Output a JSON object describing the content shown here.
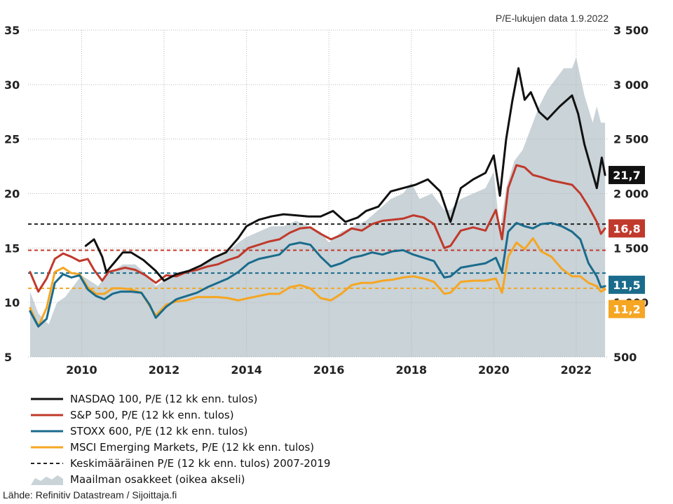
{
  "note": "P/E-lukujen data 1.9.2022",
  "source": "Lähde: Refinitiv Datastream / Sijoittaja.fi",
  "chart_data": {
    "type": "line",
    "x_ticks": [
      "2010",
      "2012",
      "2014",
      "2016",
      "2018",
      "2020",
      "2022"
    ],
    "y_left": {
      "ticks": [
        "35",
        "30",
        "25",
        "20",
        "15",
        "10",
        "5"
      ],
      "lim": [
        5,
        35
      ]
    },
    "y_right": {
      "ticks": [
        "3 500",
        "3 000",
        "2 500",
        "2 000",
        "1 500",
        "1 000",
        "500"
      ],
      "lim": [
        500,
        3500
      ]
    },
    "grid": true,
    "series": [
      {
        "name": "NASDAQ 100, P/E (12 kk enn. tulos)",
        "color": "#111111",
        "kind": "line",
        "end_label": "21,7",
        "x": [
          2010.1,
          2010.3,
          2010.5,
          2010.6,
          2010.8,
          2011.0,
          2011.2,
          2011.5,
          2011.8,
          2012.0,
          2012.3,
          2012.6,
          2012.9,
          2013.2,
          2013.5,
          2013.8,
          2014.0,
          2014.3,
          2014.6,
          2014.9,
          2015.2,
          2015.5,
          2015.8,
          2016.1,
          2016.4,
          2016.7,
          2016.9,
          2017.2,
          2017.5,
          2017.8,
          2018.1,
          2018.4,
          2018.7,
          2018.95,
          2019.2,
          2019.5,
          2019.8,
          2020.0,
          2020.15,
          2020.3,
          2020.45,
          2020.6,
          2020.75,
          2020.9,
          2021.1,
          2021.3,
          2021.6,
          2021.9,
          2022.05,
          2022.2,
          2022.35,
          2022.5,
          2022.62,
          2022.7
        ],
        "y": [
          15.2,
          15.8,
          14.2,
          12.8,
          13.7,
          14.6,
          14.6,
          13.9,
          12.9,
          12.0,
          12.6,
          12.9,
          13.4,
          14.1,
          14.6,
          15.9,
          17.0,
          17.6,
          17.9,
          18.1,
          18.0,
          17.9,
          17.9,
          18.4,
          17.4,
          17.8,
          18.4,
          18.8,
          20.2,
          20.5,
          20.8,
          21.3,
          20.2,
          17.4,
          20.5,
          21.3,
          21.9,
          23.5,
          19.8,
          25.0,
          28.5,
          31.5,
          28.6,
          29.3,
          27.5,
          26.8,
          28.0,
          29.0,
          27.3,
          24.5,
          22.5,
          20.5,
          23.3,
          21.7
        ]
      },
      {
        "name": "S&P 500, P/E (12 kk enn. tulos)",
        "color": "#c0392b",
        "kind": "line",
        "end_label": "16,8",
        "x": [
          2008.75,
          2008.95,
          2009.15,
          2009.35,
          2009.55,
          2009.75,
          2009.95,
          2010.15,
          2010.3,
          2010.5,
          2010.65,
          2010.85,
          2011.05,
          2011.3,
          2011.55,
          2011.8,
          2012.05,
          2012.3,
          2012.55,
          2012.8,
          2013.05,
          2013.3,
          2013.55,
          2013.8,
          2014.05,
          2014.3,
          2014.55,
          2014.8,
          2015.05,
          2015.3,
          2015.55,
          2015.8,
          2016.05,
          2016.3,
          2016.55,
          2016.8,
          2017.05,
          2017.3,
          2017.55,
          2017.8,
          2018.05,
          2018.3,
          2018.55,
          2018.8,
          2018.95,
          2019.2,
          2019.5,
          2019.8,
          2020.05,
          2020.2,
          2020.35,
          2020.55,
          2020.75,
          2020.95,
          2021.15,
          2021.4,
          2021.65,
          2021.9,
          2022.1,
          2022.3,
          2022.5,
          2022.6,
          2022.7
        ],
        "y": [
          12.8,
          11.0,
          12.2,
          14.0,
          14.5,
          14.2,
          13.8,
          14.0,
          13.0,
          12.0,
          12.8,
          13.0,
          13.2,
          13.0,
          12.5,
          11.8,
          12.5,
          12.4,
          12.8,
          13.0,
          13.3,
          13.5,
          13.9,
          14.2,
          15.0,
          15.3,
          15.6,
          15.8,
          16.4,
          16.8,
          16.9,
          16.3,
          15.8,
          16.2,
          16.8,
          16.6,
          17.2,
          17.5,
          17.6,
          17.7,
          18.0,
          17.8,
          17.2,
          15.0,
          15.2,
          16.6,
          16.9,
          16.6,
          18.5,
          15.8,
          20.5,
          22.6,
          22.4,
          21.7,
          21.5,
          21.2,
          21.0,
          20.8,
          20.0,
          18.8,
          17.4,
          16.3,
          16.8
        ]
      },
      {
        "name": "STOXX 600, P/E (12 kk enn. tulos)",
        "color": "#1a6b8c",
        "kind": "line",
        "end_label": "11,5",
        "x": [
          2008.75,
          2008.95,
          2009.15,
          2009.35,
          2009.55,
          2009.75,
          2009.95,
          2010.15,
          2010.35,
          2010.55,
          2010.75,
          2010.95,
          2011.2,
          2011.45,
          2011.65,
          2011.8,
          2012.05,
          2012.3,
          2012.55,
          2012.8,
          2013.05,
          2013.3,
          2013.55,
          2013.8,
          2014.05,
          2014.3,
          2014.55,
          2014.8,
          2015.05,
          2015.3,
          2015.55,
          2015.8,
          2016.05,
          2016.3,
          2016.55,
          2016.8,
          2017.05,
          2017.3,
          2017.55,
          2017.8,
          2018.05,
          2018.3,
          2018.55,
          2018.8,
          2018.95,
          2019.2,
          2019.5,
          2019.8,
          2020.05,
          2020.2,
          2020.35,
          2020.55,
          2020.75,
          2020.95,
          2021.15,
          2021.4,
          2021.65,
          2021.9,
          2022.1,
          2022.3,
          2022.5,
          2022.6,
          2022.7
        ],
        "y": [
          9.2,
          7.8,
          8.5,
          11.8,
          12.6,
          12.3,
          12.5,
          11.2,
          10.6,
          10.3,
          10.8,
          11.0,
          11.0,
          10.9,
          9.8,
          8.6,
          9.6,
          10.3,
          10.6,
          10.9,
          11.4,
          11.8,
          12.2,
          12.8,
          13.6,
          14.0,
          14.2,
          14.4,
          15.3,
          15.5,
          15.3,
          14.2,
          13.3,
          13.6,
          14.1,
          14.3,
          14.6,
          14.4,
          14.7,
          14.8,
          14.4,
          14.1,
          13.8,
          12.3,
          12.4,
          13.2,
          13.4,
          13.6,
          14.1,
          12.8,
          16.5,
          17.3,
          17.0,
          16.8,
          17.2,
          17.3,
          17.0,
          16.5,
          15.8,
          13.6,
          12.4,
          11.4,
          11.5
        ]
      },
      {
        "name": "MSCI Emerging Markets, P/E (12 kk enn. tulos)",
        "color": "#f5a623",
        "kind": "line",
        "end_label": "11,2",
        "x": [
          2008.75,
          2008.95,
          2009.15,
          2009.35,
          2009.55,
          2009.75,
          2009.95,
          2010.15,
          2010.35,
          2010.55,
          2010.75,
          2010.95,
          2011.2,
          2011.45,
          2011.65,
          2011.8,
          2012.05,
          2012.3,
          2012.55,
          2012.8,
          2013.05,
          2013.3,
          2013.55,
          2013.8,
          2014.05,
          2014.3,
          2014.55,
          2014.8,
          2015.05,
          2015.3,
          2015.55,
          2015.8,
          2016.05,
          2016.3,
          2016.55,
          2016.8,
          2017.05,
          2017.3,
          2017.55,
          2017.8,
          2018.05,
          2018.3,
          2018.55,
          2018.8,
          2018.95,
          2019.2,
          2019.5,
          2019.8,
          2020.05,
          2020.2,
          2020.35,
          2020.55,
          2020.75,
          2020.95,
          2021.15,
          2021.4,
          2021.65,
          2021.9,
          2022.1,
          2022.3,
          2022.5,
          2022.6,
          2022.7
        ],
        "y": [
          9.5,
          7.8,
          9.5,
          12.8,
          13.2,
          12.7,
          12.6,
          11.4,
          10.8,
          10.8,
          11.3,
          11.3,
          11.2,
          10.9,
          9.7,
          8.8,
          9.8,
          10.1,
          10.2,
          10.5,
          10.5,
          10.5,
          10.4,
          10.2,
          10.4,
          10.6,
          10.8,
          10.8,
          11.4,
          11.6,
          11.3,
          10.4,
          10.2,
          10.8,
          11.6,
          11.8,
          11.8,
          12.0,
          12.1,
          12.3,
          12.4,
          12.2,
          11.9,
          10.8,
          10.9,
          11.9,
          12.0,
          12.0,
          12.2,
          10.9,
          14.2,
          15.5,
          14.9,
          15.9,
          14.7,
          14.2,
          13.1,
          12.4,
          12.4,
          11.8,
          11.5,
          11.0,
          11.2
        ]
      },
      {
        "name": "Keskimääräinen P/E (12 kk enn. tulos) 2007-2019",
        "color": "#222222",
        "kind": "dashed",
        "values_by_series": [
          17.2,
          14.8,
          12.7,
          11.3
        ]
      },
      {
        "name": "Maailman osakkeet (oikea akseli)",
        "color": "#c9d3d8",
        "kind": "area",
        "axis": "right",
        "x": [
          2008.75,
          2008.95,
          2009.2,
          2009.4,
          2009.6,
          2009.8,
          2010.0,
          2010.2,
          2010.4,
          2010.6,
          2010.8,
          2011.0,
          2011.3,
          2011.6,
          2011.8,
          2012.0,
          2012.3,
          2012.6,
          2012.9,
          2013.2,
          2013.5,
          2013.8,
          2014.0,
          2014.3,
          2014.6,
          2014.9,
          2015.2,
          2015.5,
          2015.8,
          2016.0,
          2016.3,
          2016.6,
          2016.9,
          2017.2,
          2017.5,
          2017.8,
          2018.0,
          2018.2,
          2018.5,
          2018.8,
          2018.95,
          2019.2,
          2019.5,
          2019.8,
          2020.0,
          2020.15,
          2020.3,
          2020.5,
          2020.7,
          2020.9,
          2021.1,
          2021.3,
          2021.5,
          2021.7,
          2021.9,
          2022.0,
          2022.2,
          2022.4,
          2022.5,
          2022.6,
          2022.7
        ],
        "y": [
          1100,
          900,
          800,
          1000,
          1050,
          1150,
          1250,
          1200,
          1150,
          1250,
          1300,
          1350,
          1350,
          1250,
          1150,
          1200,
          1250,
          1300,
          1350,
          1400,
          1450,
          1550,
          1600,
          1650,
          1700,
          1700,
          1750,
          1700,
          1650,
          1550,
          1650,
          1700,
          1750,
          1850,
          1950,
          2000,
          2100,
          1950,
          2000,
          1850,
          1850,
          1950,
          2000,
          2050,
          2200,
          1650,
          2050,
          2300,
          2400,
          2600,
          2800,
          2950,
          3050,
          3150,
          3150,
          3250,
          2900,
          2650,
          2800,
          2650,
          2650
        ]
      }
    ]
  },
  "legend": [
    {
      "label": "NASDAQ 100, P/E (12 kk enn. tulos)",
      "type": "line",
      "color": "#111111"
    },
    {
      "label": "S&P 500, P/E (12 kk enn. tulos)",
      "type": "line",
      "color": "#c0392b"
    },
    {
      "label": "STOXX 600, P/E (12 kk enn. tulos)",
      "type": "line",
      "color": "#1a6b8c"
    },
    {
      "label": "MSCI Emerging Markets, P/E (12 kk enn. tulos)",
      "type": "line",
      "color": "#f5a623"
    },
    {
      "label": "Keskimääräinen P/E (12 kk enn. tulos) 2007-2019",
      "type": "dashed",
      "color": "#222222"
    },
    {
      "label": "Maailman osakkeet (oikea akseli)",
      "type": "area",
      "color": "#c9d3d8"
    }
  ]
}
